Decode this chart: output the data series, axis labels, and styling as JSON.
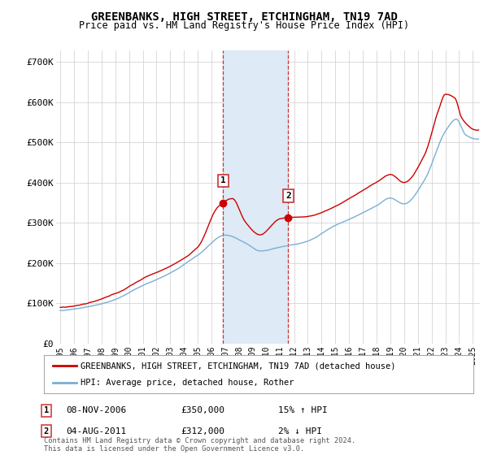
{
  "title": "GREENBANKS, HIGH STREET, ETCHINGHAM, TN19 7AD",
  "subtitle": "Price paid vs. HM Land Registry's House Price Index (HPI)",
  "ylabel_ticks": [
    "£0",
    "£100K",
    "£200K",
    "£300K",
    "£400K",
    "£500K",
    "£600K",
    "£700K"
  ],
  "ytick_values": [
    0,
    100000,
    200000,
    300000,
    400000,
    500000,
    600000,
    700000
  ],
  "ylim": [
    0,
    730000
  ],
  "xlim_start": 1994.7,
  "xlim_end": 2025.5,
  "red_line_color": "#cc0000",
  "blue_line_color": "#7aafd4",
  "shaded_color": "#deeaf5",
  "vline_color": "#cc3333",
  "marker1_x": 2006.85,
  "marker1_y": 350000,
  "marker2_x": 2011.58,
  "marker2_y": 312000,
  "shade1_x": 2006.85,
  "shade2_x": 2011.58,
  "legend_red_label": "GREENBANKS, HIGH STREET, ETCHINGHAM, TN19 7AD (detached house)",
  "legend_blue_label": "HPI: Average price, detached house, Rother",
  "table_rows": [
    {
      "num": "1",
      "date": "08-NOV-2006",
      "price": "£350,000",
      "hpi": "15% ↑ HPI"
    },
    {
      "num": "2",
      "date": "04-AUG-2011",
      "price": "£312,000",
      "hpi": "2% ↓ HPI"
    }
  ],
  "footnote": "Contains HM Land Registry data © Crown copyright and database right 2024.\nThis data is licensed under the Open Government Licence v3.0.",
  "bg_color": "#ffffff",
  "grid_color": "#cccccc"
}
